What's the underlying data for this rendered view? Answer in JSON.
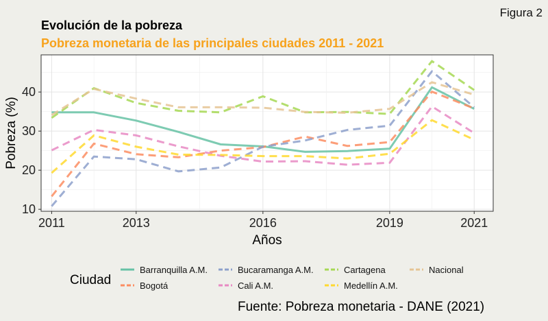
{
  "figure_label": "Figura 2",
  "source_note": "Fuente: Pobreza monetaria - DANE (2021)",
  "chart_data": {
    "type": "line",
    "title": "Evolución de la pobreza",
    "subtitle": "Pobreza monetaria de las principales ciudades 2011 - 2021",
    "xlabel": "Años",
    "ylabel": "Pobreza (%)",
    "x": [
      2011,
      2012,
      2013,
      2014,
      2015,
      2016,
      2017,
      2018,
      2019,
      2020,
      2021
    ],
    "xlim": [
      2010.75,
      2021.45
    ],
    "ylim": [
      9.5,
      49.5
    ],
    "x_ticks": [
      2011,
      2013,
      2016,
      2019,
      2021
    ],
    "y_ticks": [
      10,
      20,
      30,
      40
    ],
    "grid": true,
    "legend_title": "Ciudad",
    "legend_position": "bottom",
    "series": [
      {
        "name": "Barranquilla A.M.",
        "color": "#66c2a5",
        "dashed": false,
        "values": [
          34.8,
          34.8,
          32.7,
          29.8,
          26.6,
          26.1,
          24.7,
          24.9,
          25.5,
          41.2,
          35.7
        ]
      },
      {
        "name": "Bogotá",
        "color": "#fc8d62",
        "dashed": true,
        "values": [
          13.3,
          26.8,
          24.1,
          23.3,
          25.0,
          25.9,
          28.6,
          26.2,
          27.2,
          40.1,
          35.8
        ]
      },
      {
        "name": "Bucaramanga A.M.",
        "color": "#8da0cb",
        "dashed": true,
        "values": [
          10.8,
          23.5,
          22.8,
          19.7,
          20.7,
          26.0,
          27.6,
          30.3,
          31.4,
          45.3,
          36.1
        ]
      },
      {
        "name": "Cali A.M.",
        "color": "#e78ac3",
        "dashed": true,
        "values": [
          25.1,
          30.3,
          28.9,
          26.1,
          23.7,
          22.2,
          22.3,
          21.4,
          21.9,
          36.3,
          29.5
        ]
      },
      {
        "name": "Cartagena",
        "color": "#a6d854",
        "dashed": true,
        "values": [
          33.4,
          41.0,
          37.2,
          35.2,
          34.8,
          38.9,
          34.8,
          34.9,
          34.4,
          47.9,
          40.5
        ]
      },
      {
        "name": "Medellín A.M.",
        "color": "#ffd92f",
        "dashed": true,
        "values": [
          19.3,
          28.9,
          26.0,
          24.0,
          23.9,
          23.6,
          23.6,
          23.0,
          24.2,
          32.8,
          27.8
        ]
      },
      {
        "name": "Nacional",
        "color": "#e5c494",
        "dashed": true,
        "values": [
          34.1,
          40.8,
          38.3,
          36.1,
          36.1,
          36.0,
          34.9,
          34.7,
          35.7,
          42.5,
          39.3
        ]
      }
    ]
  }
}
